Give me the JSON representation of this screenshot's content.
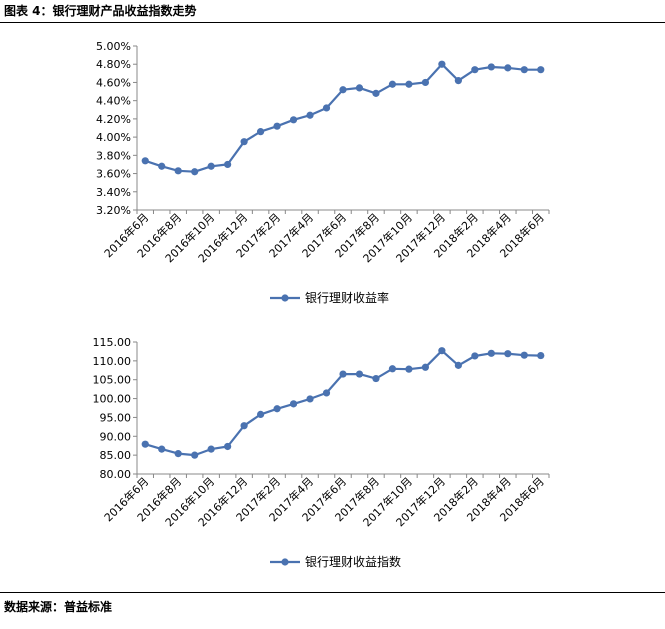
{
  "header": {
    "title": "图表 4：银行理财产品收益指数走势"
  },
  "footer": {
    "source": "数据来源：普益标准"
  },
  "colors": {
    "series": "#4a72b0",
    "axis": "#888888"
  },
  "chart_data": [
    {
      "type": "line",
      "categories": [
        "2016年6月",
        "2016年7月",
        "2016年8月",
        "2016年9月",
        "2016年10月",
        "2016年11月",
        "2016年12月",
        "2017年1月",
        "2017年2月",
        "2017年3月",
        "2017年4月",
        "2017年5月",
        "2017年6月",
        "2017年7月",
        "2017年8月",
        "2017年9月",
        "2017年10月",
        "2017年11月",
        "2017年12月",
        "2018年1月",
        "2018年2月",
        "2018年3月",
        "2018年4月",
        "2018年5月",
        "2018年6月"
      ],
      "tick_labels": [
        "2016年6月",
        "2016年8月",
        "2016年10月",
        "2016年12月",
        "2017年2月",
        "2017年4月",
        "2017年6月",
        "2017年8月",
        "2017年10月",
        "2017年12月",
        "2018年2月",
        "2018年4月",
        "2018年6月"
      ],
      "y_ticks": [
        "3.20%",
        "3.40%",
        "3.60%",
        "3.80%",
        "4.00%",
        "4.20%",
        "4.40%",
        "4.60%",
        "4.80%",
        "5.00%"
      ],
      "series": [
        {
          "name": "银行理财收益率",
          "values": [
            3.74,
            3.68,
            3.63,
            3.62,
            3.68,
            3.7,
            3.95,
            4.06,
            4.12,
            4.19,
            4.24,
            4.32,
            4.52,
            4.54,
            4.48,
            4.58,
            4.58,
            4.6,
            4.8,
            4.62,
            4.74,
            4.77,
            4.76,
            4.74,
            4.74
          ]
        }
      ],
      "ylim": [
        3.2,
        5.0
      ],
      "legend": "bottom",
      "grid": false
    },
    {
      "type": "line",
      "categories": [
        "2016年6月",
        "2016年7月",
        "2016年8月",
        "2016年9月",
        "2016年10月",
        "2016年11月",
        "2016年12月",
        "2017年1月",
        "2017年2月",
        "2017年3月",
        "2017年4月",
        "2017年5月",
        "2017年6月",
        "2017年7月",
        "2017年8月",
        "2017年9月",
        "2017年10月",
        "2017年11月",
        "2017年12月",
        "2018年1月",
        "2018年2月",
        "2018年3月",
        "2018年4月",
        "2018年5月",
        "2018年6月"
      ],
      "tick_labels": [
        "2016年6月",
        "2016年8月",
        "2016年10月",
        "2016年12月",
        "2017年2月",
        "2017年4月",
        "2017年6月",
        "2017年8月",
        "2017年10月",
        "2017年12月",
        "2018年2月",
        "2018年4月",
        "2018年6月"
      ],
      "y_ticks": [
        "80.00",
        "85.00",
        "90.00",
        "95.00",
        "100.00",
        "105.00",
        "110.00",
        "115.00"
      ],
      "series": [
        {
          "name": "银行理财收益指数",
          "values": [
            87.9,
            86.6,
            85.4,
            85.0,
            86.6,
            87.3,
            92.8,
            95.8,
            97.3,
            98.6,
            99.9,
            101.5,
            106.5,
            106.5,
            105.3,
            107.9,
            107.8,
            108.3,
            112.7,
            108.8,
            111.3,
            112.0,
            111.9,
            111.5,
            111.4
          ]
        }
      ],
      "ylim": [
        80,
        115
      ],
      "legend": "bottom",
      "grid": false
    }
  ]
}
